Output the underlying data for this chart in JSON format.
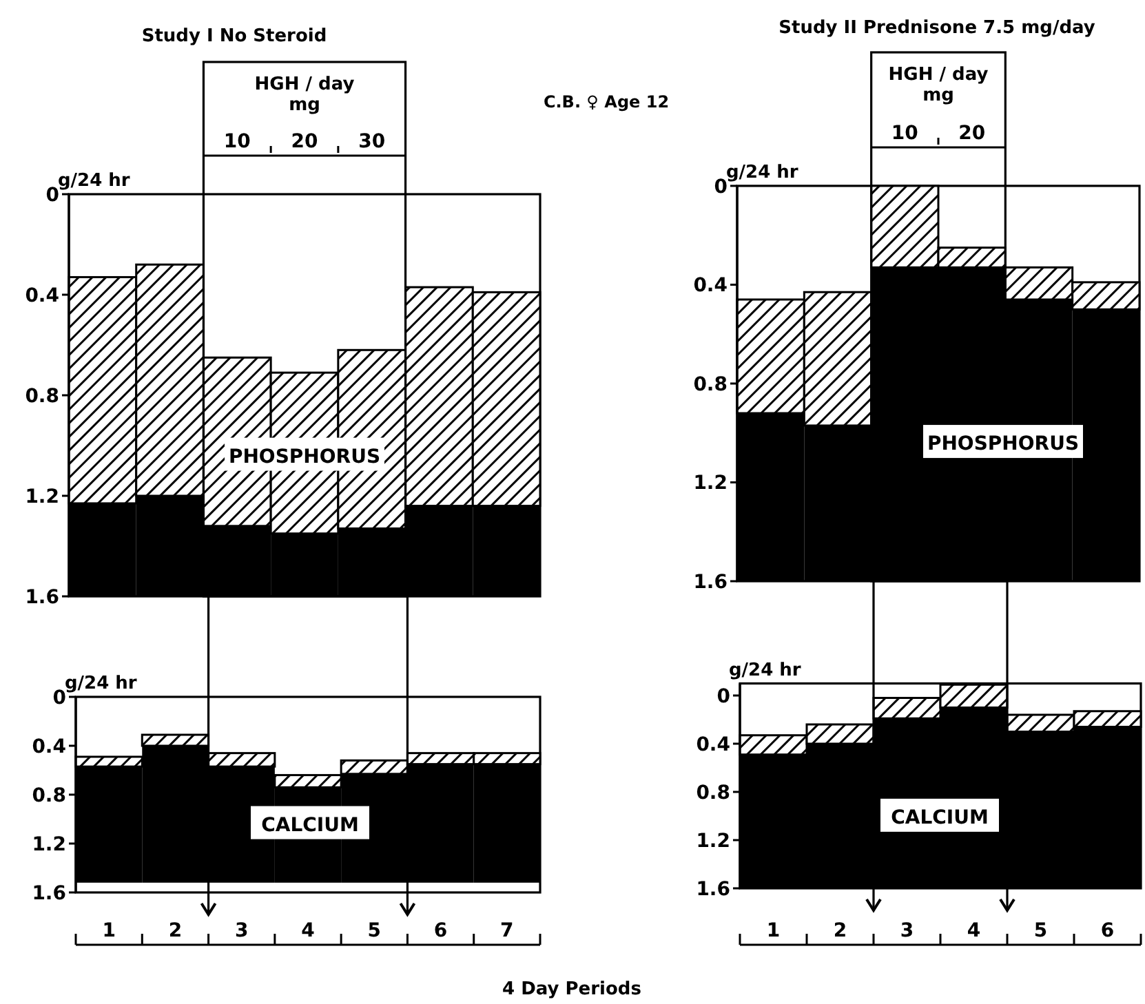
{
  "chart_data": [
    {
      "type": "bar",
      "title": "Study I  No  Steroid",
      "ylabel": "g/24 hr",
      "categories": [
        "1",
        "2",
        "3",
        "4",
        "5",
        "6",
        "7"
      ],
      "tick_labels": "y",
      "ylim": [
        1.6,
        0
      ],
      "yticks": [
        0,
        0.4,
        0.8,
        1.2,
        1.6
      ],
      "series": [
        {
          "color": "#000000",
          "base": [
            1.23,
            1.2,
            1.32,
            1.35,
            1.33,
            1.24,
            1.24
          ],
          "values": [
            -0.9,
            -0.92,
            -0.67,
            -0.64,
            -0.71,
            -0.87,
            -0.85
          ]
        },
        {
          "color": "#000000",
          "base": [
            1.6,
            1.6,
            1.6,
            1.6,
            1.6,
            1.6,
            1.6
          ],
          "values": [
            -0.37,
            -0.4,
            -0.28,
            -0.25,
            -0.27,
            -0.36,
            -0.36
          ]
        }
      ],
      "annotations": [
        "PHOSPHORUS",
        "C.B. ♀ Age 12",
        "HGH / day mg",
        "10",
        "20",
        "30"
      ]
    },
    {
      "type": "bar",
      "title": "Study II  Prednisone 7.5 mg/day",
      "ylabel": "g/24 hr",
      "categories": [
        "1",
        "2",
        "3",
        "4",
        "5",
        "6"
      ],
      "tick_labels": "y",
      "ylim": [
        1.6,
        0
      ],
      "yticks": [
        0,
        0.4,
        0.8,
        1.2,
        1.6
      ],
      "series": [
        {
          "color": "#000000",
          "base": [
            0.92,
            0.97,
            0.33,
            0.33,
            0.46,
            0.5
          ],
          "values": [
            -0.46,
            -0.54,
            -0.33,
            -0.08,
            -0.13,
            -0.11
          ]
        },
        {
          "color": "#000000",
          "base": [
            1.6,
            1.6,
            1.6,
            1.6,
            1.6,
            1.6
          ],
          "values": [
            -0.68,
            -0.63,
            -1.27,
            -1.27,
            -1.14,
            -1.1
          ]
        }
      ],
      "annotations": [
        "PHOSPHORUS",
        "HGH / day mg",
        "10",
        "20"
      ]
    },
    {
      "type": "bar",
      "ylabel": "g/24 hr",
      "xlabel": "4 Day Periods",
      "categories": [
        "1",
        "2",
        "3",
        "4",
        "5",
        "6",
        "7"
      ],
      "ylim": [
        1.6,
        0
      ],
      "yticks": [
        0,
        0.4,
        0.8,
        1.2,
        1.6
      ],
      "series": [
        {
          "color": "#000000",
          "base": [
            0.57,
            0.4,
            0.57,
            0.74,
            0.63,
            0.55,
            0.55
          ],
          "values": [
            -0.08,
            -0.09,
            -0.11,
            -0.1,
            -0.11,
            -0.09,
            -0.09
          ]
        },
        {
          "color": "#000000",
          "base": [
            1.52,
            1.52,
            1.52,
            1.52,
            1.52,
            1.52,
            1.52
          ],
          "values": [
            -0.95,
            -1.12,
            -0.95,
            -0.78,
            -0.89,
            -0.97,
            -0.97
          ]
        }
      ],
      "annotations": [
        "CALCIUM"
      ]
    },
    {
      "type": "bar",
      "ylabel": "g/24 hr",
      "categories": [
        "1",
        "2",
        "3",
        "4",
        "5",
        "6"
      ],
      "ylim": [
        1.6,
        -0.1
      ],
      "yticks": [
        0,
        0.4,
        0.8,
        1.2,
        1.6
      ],
      "series": [
        {
          "color": "#000000",
          "base": [
            0.49,
            0.4,
            0.19,
            0.1,
            0.3,
            0.26
          ],
          "values": [
            -0.16,
            -0.16,
            -0.17,
            -0.19,
            -0.14,
            -0.13
          ]
        },
        {
          "color": "#000000",
          "base": [
            1.6,
            1.6,
            1.6,
            1.6,
            1.6,
            1.6
          ],
          "values": [
            -1.11,
            -1.2,
            -1.41,
            -1.5,
            -1.3,
            -1.34
          ]
        }
      ],
      "annotations": [
        "CALCIUM"
      ]
    }
  ]
}
